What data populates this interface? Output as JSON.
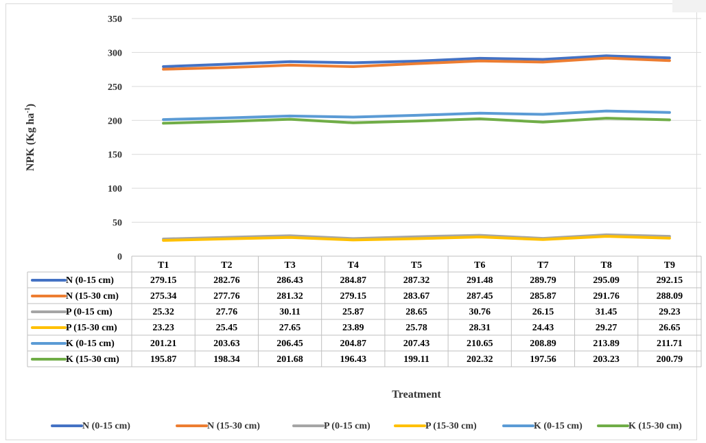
{
  "chart_data": {
    "type": "line",
    "title": "",
    "xlabel": "Treatment",
    "ylabel": "NPK (Kg ha",
    "ylabel_sup": "-1",
    "ylabel_end": ")",
    "ylim": [
      0,
      350
    ],
    "yticks": [
      "0",
      "50",
      "100",
      "150",
      "200",
      "250",
      "300",
      "350"
    ],
    "grid": true,
    "legend_position": "bottom",
    "categories": [
      "T1",
      "T2",
      "T3",
      "T4",
      "T5",
      "T6",
      "T7",
      "T8",
      "T9"
    ],
    "series": [
      {
        "name": "N (0-15 cm)",
        "color": "#4472c4",
        "values": [
          279.15,
          282.76,
          286.43,
          284.87,
          287.32,
          291.48,
          289.79,
          295.09,
          292.15
        ],
        "labels": [
          "279.15",
          "282.76",
          "286.43",
          "284.87",
          "287.32",
          "291.48",
          "289.79",
          "295.09",
          "292.15"
        ]
      },
      {
        "name": "N (15-30 cm)",
        "color": "#ed7d31",
        "values": [
          275.34,
          277.76,
          281.32,
          279.15,
          283.67,
          287.45,
          285.87,
          291.76,
          288.09
        ],
        "labels": [
          "275.34",
          "277.76",
          "281.32",
          "279.15",
          "283.67",
          "287.45",
          "285.87",
          "291.76",
          "288.09"
        ]
      },
      {
        "name": "P (0-15 cm)",
        "color": "#a5a5a5",
        "values": [
          25.32,
          27.76,
          30.11,
          25.87,
          28.65,
          30.76,
          26.15,
          31.45,
          29.23
        ],
        "labels": [
          "25.32",
          "27.76",
          "30.11",
          "25.87",
          "28.65",
          "30.76",
          "26.15",
          "31.45",
          "29.23"
        ]
      },
      {
        "name": "P (15-30 cm)",
        "color": "#ffc000",
        "values": [
          23.23,
          25.45,
          27.65,
          23.89,
          25.78,
          28.31,
          24.43,
          29.27,
          26.65
        ],
        "labels": [
          "23.23",
          "25.45",
          "27.65",
          "23.89",
          "25.78",
          "28.31",
          "24.43",
          "29.27",
          "26.65"
        ]
      },
      {
        "name": "K (0-15 cm)",
        "color": "#5b9bd5",
        "values": [
          201.21,
          203.63,
          206.45,
          204.87,
          207.43,
          210.65,
          208.89,
          213.89,
          211.71
        ],
        "labels": [
          "201.21",
          "203.63",
          "206.45",
          "204.87",
          "207.43",
          "210.65",
          "208.89",
          "213.89",
          "211.71"
        ]
      },
      {
        "name": "K (15-30 cm)",
        "color": "#70ad47",
        "values": [
          195.87,
          198.34,
          201.68,
          196.43,
          199.11,
          202.32,
          197.56,
          203.23,
          200.79
        ],
        "labels": [
          "195.87",
          "198.34",
          "201.68",
          "196.43",
          "199.11",
          "202.32",
          "197.56",
          "203.23",
          "200.79"
        ]
      }
    ]
  }
}
